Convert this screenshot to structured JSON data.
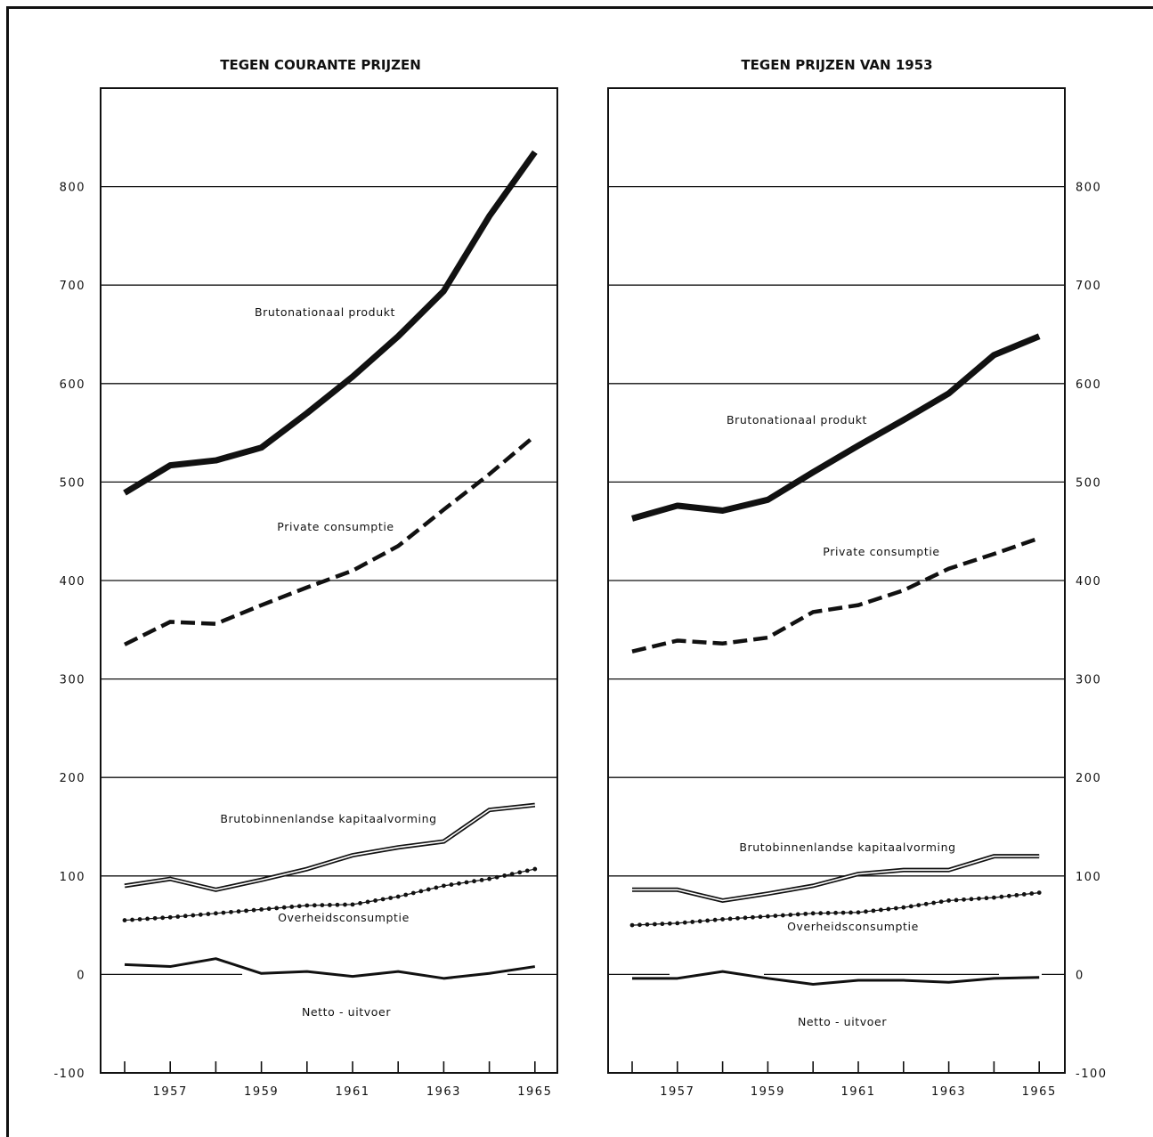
{
  "header": {
    "text": ""
  },
  "chart_data": [
    {
      "type": "line",
      "title": "TEGEN COURANTE PRIJZEN",
      "x": [
        1956,
        1957,
        1958,
        1959,
        1960,
        1961,
        1962,
        1963,
        1964,
        1965
      ],
      "x_tick_labels": [
        "1957",
        "1959",
        "1961",
        "1963",
        "1965"
      ],
      "ylim": [
        -100,
        900
      ],
      "y_tick_labels": [
        "800",
        "700",
        "600",
        "500",
        "400",
        "300",
        "200",
        "100",
        "0",
        "-100"
      ],
      "y_axis_side": "left",
      "grid": true,
      "series": [
        {
          "name": "Brutonationaal produkt",
          "style": "thick-solid",
          "values": [
            489,
            517,
            522,
            535,
            570,
            607,
            648,
            694,
            770,
            835
          ]
        },
        {
          "name": "Private consumptie",
          "style": "dashed",
          "values": [
            335,
            358,
            356,
            375,
            393,
            410,
            435,
            472,
            508,
            547
          ]
        },
        {
          "name": "Brutobinnenlandse kapitaalvorming",
          "style": "double",
          "values": [
            90,
            97,
            86,
            96,
            107,
            121,
            129,
            135,
            167,
            172
          ]
        },
        {
          "name": "Overheidsconsumptie",
          "style": "dotted",
          "values": [
            55,
            58,
            62,
            66,
            70,
            71,
            79,
            90,
            97,
            107
          ]
        },
        {
          "name": "Netto - uitvoer",
          "style": "solid",
          "values": [
            10,
            8,
            16,
            1,
            3,
            -2,
            3,
            -4,
            1,
            8
          ]
        }
      ]
    },
    {
      "type": "line",
      "title": "TEGEN PRIJZEN VAN 1953",
      "x": [
        1956,
        1957,
        1958,
        1959,
        1960,
        1961,
        1962,
        1963,
        1964,
        1965
      ],
      "x_tick_labels": [
        "1957",
        "1959",
        "1961",
        "1963",
        "1965"
      ],
      "ylim": [
        -100,
        900
      ],
      "y_tick_labels": [
        "800",
        "700",
        "600",
        "500",
        "400",
        "300",
        "200",
        "100",
        "0",
        "-100"
      ],
      "y_axis_side": "right",
      "grid": true,
      "series": [
        {
          "name": "Brutonationaal produkt",
          "style": "thick-solid",
          "values": [
            463,
            476,
            471,
            482,
            510,
            537,
            563,
            590,
            629,
            648
          ]
        },
        {
          "name": "Private consumptie",
          "style": "dashed",
          "values": [
            328,
            339,
            336,
            342,
            368,
            375,
            390,
            412,
            427,
            443
          ]
        },
        {
          "name": "Brutobinnenlandse kapitaalvorming",
          "style": "double",
          "values": [
            86,
            86,
            75,
            82,
            90,
            102,
            106,
            106,
            120,
            120
          ]
        },
        {
          "name": "Overheidsconsumptie",
          "style": "dotted",
          "values": [
            50,
            52,
            56,
            59,
            62,
            63,
            68,
            75,
            78,
            83
          ]
        },
        {
          "name": "Netto - uitvoer",
          "style": "solid",
          "values": [
            -4,
            -4,
            3,
            -4,
            -10,
            -6,
            -6,
            -8,
            -4,
            -3
          ]
        }
      ]
    }
  ]
}
